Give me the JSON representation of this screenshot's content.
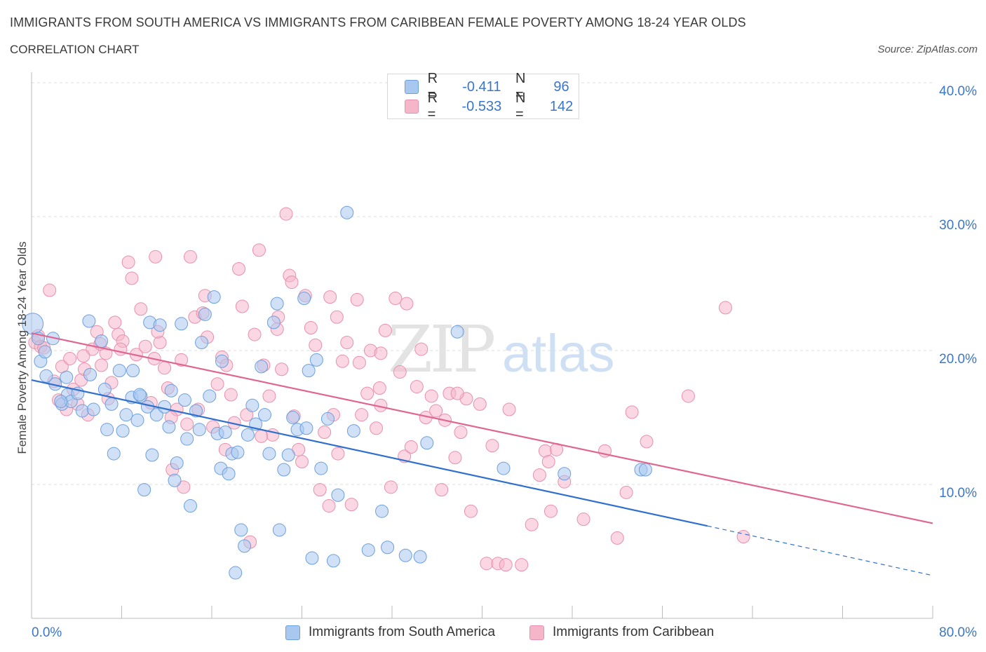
{
  "title": "IMMIGRANTS FROM SOUTH AMERICA VS IMMIGRANTS FROM CARIBBEAN FEMALE POVERTY AMONG 18-24 YEAR OLDS",
  "subtitle": "CORRELATION CHART",
  "source": "Source: ZipAtlas.com",
  "watermark": {
    "zip": "ZIP",
    "atlas": "atlas"
  },
  "colors": {
    "blue_fill": "#a9c8f0",
    "blue_stroke": "#6c9fdd",
    "blue_line": "#2f6fce",
    "pink_fill": "#f5b6ca",
    "pink_stroke": "#e890ad",
    "pink_line": "#e06690",
    "accent_text": "#3a76c9",
    "grid": "#dcdcdc"
  },
  "legend": {
    "rows": [
      {
        "series": "blue",
        "r_label": "R =",
        "r_value": "-0.411",
        "n_label": "N =",
        "n_value": "96"
      },
      {
        "series": "pink",
        "r_label": "R =",
        "r_value": "-0.533",
        "n_label": "N =",
        "n_value": "142"
      }
    ]
  },
  "bottom_legend": [
    {
      "series": "blue",
      "label": "Immigrants from South America"
    },
    {
      "series": "pink",
      "label": "Immigrants from Caribbean"
    }
  ],
  "chart_data": {
    "type": "scatter",
    "xlabel": "",
    "ylabel": "Female Poverty Among 18-24 Year Olds",
    "xlim": [
      0,
      80
    ],
    "ylim": [
      0,
      40
    ],
    "x_tick_labels": [
      {
        "value": 0,
        "label": "0.0%"
      },
      {
        "value": 80,
        "label": "80.0%"
      }
    ],
    "y_tick_labels": [
      {
        "value": 10,
        "label": "10.0%"
      },
      {
        "value": 20,
        "label": "20.0%"
      },
      {
        "value": 30,
        "label": "30.0%"
      },
      {
        "value": 40,
        "label": "40.0%"
      }
    ],
    "grid": true,
    "series": [
      {
        "name": "Immigrants from South America",
        "color": "blue",
        "trend": {
          "x0": 0,
          "y0": 17.8,
          "x1": 60,
          "y1": 6.9,
          "dashed_to_x": 80,
          "dashed_to_y": 3.2
        },
        "points": [
          [
            0.1,
            22.0
          ],
          [
            0.6,
            20.9
          ],
          [
            0.8,
            19.2
          ],
          [
            1.2,
            19.9
          ],
          [
            1.3,
            18.1
          ],
          [
            1.9,
            20.9
          ],
          [
            2.1,
            17.5
          ],
          [
            2.7,
            16.0
          ],
          [
            3.1,
            18.0
          ],
          [
            3.2,
            16.7
          ],
          [
            3.5,
            16.2
          ],
          [
            4.1,
            16.8
          ],
          [
            4.5,
            15.5
          ],
          [
            5.1,
            22.2
          ],
          [
            5.2,
            18.2
          ],
          [
            5.5,
            15.6
          ],
          [
            6.2,
            20.7
          ],
          [
            6.5,
            17.1
          ],
          [
            6.7,
            14.1
          ],
          [
            7.1,
            16.0
          ],
          [
            7.3,
            12.3
          ],
          [
            7.8,
            18.5
          ],
          [
            8.1,
            14.0
          ],
          [
            8.4,
            15.2
          ],
          [
            8.9,
            16.5
          ],
          [
            9.0,
            18.5
          ],
          [
            9.4,
            14.8
          ],
          [
            9.7,
            16.6
          ],
          [
            10.0,
            9.6
          ],
          [
            10.3,
            15.8
          ],
          [
            10.5,
            22.1
          ],
          [
            10.7,
            12.2
          ],
          [
            11.1,
            15.2
          ],
          [
            11.4,
            21.9
          ],
          [
            11.8,
            15.8
          ],
          [
            12.2,
            14.3
          ],
          [
            12.4,
            17.0
          ],
          [
            12.7,
            10.3
          ],
          [
            12.9,
            11.6
          ],
          [
            13.3,
            22.0
          ],
          [
            13.6,
            16.3
          ],
          [
            13.8,
            13.4
          ],
          [
            14.1,
            8.4
          ],
          [
            14.6,
            15.5
          ],
          [
            14.9,
            14.1
          ],
          [
            15.1,
            20.6
          ],
          [
            15.4,
            22.7
          ],
          [
            15.8,
            16.6
          ],
          [
            16.2,
            24.0
          ],
          [
            16.5,
            13.8
          ],
          [
            16.8,
            11.2
          ],
          [
            17.2,
            13.9
          ],
          [
            17.5,
            10.8
          ],
          [
            17.8,
            12.3
          ],
          [
            18.3,
            12.4
          ],
          [
            18.6,
            6.6
          ],
          [
            18.9,
            5.4
          ],
          [
            19.2,
            13.7
          ],
          [
            19.6,
            15.9
          ],
          [
            19.9,
            14.5
          ],
          [
            20.4,
            18.8
          ],
          [
            20.7,
            15.2
          ],
          [
            21.1,
            12.3
          ],
          [
            21.5,
            22.1
          ],
          [
            21.8,
            23.5
          ],
          [
            22.0,
            6.6
          ],
          [
            22.4,
            11.1
          ],
          [
            22.8,
            12.2
          ],
          [
            23.2,
            15.0
          ],
          [
            23.6,
            14.1
          ],
          [
            24.2,
            23.9
          ],
          [
            24.6,
            18.5
          ],
          [
            24.9,
            4.5
          ],
          [
            25.3,
            19.3
          ],
          [
            25.7,
            11.2
          ],
          [
            26.3,
            14.9
          ],
          [
            26.8,
            4.3
          ],
          [
            27.2,
            9.2
          ],
          [
            28.0,
            30.3
          ],
          [
            28.6,
            14.0
          ],
          [
            29.9,
            5.1
          ],
          [
            31.1,
            8.0
          ],
          [
            31.6,
            5.3
          ],
          [
            33.2,
            4.7
          ],
          [
            34.5,
            4.6
          ],
          [
            35.1,
            13.1
          ],
          [
            37.8,
            21.4
          ],
          [
            41.9,
            11.2
          ],
          [
            47.3,
            10.8
          ],
          [
            54.1,
            11.1
          ],
          [
            54.5,
            11.1
          ],
          [
            18.1,
            3.4
          ],
          [
            24.4,
            14.2
          ],
          [
            9.6,
            16.7
          ],
          [
            2.6,
            16.2
          ],
          [
            16.9,
            19.2
          ]
        ]
      },
      {
        "name": "Immigrants from Caribbean",
        "color": "pink",
        "trend": {
          "x0": 0,
          "y0": 21.3,
          "x1": 80,
          "y1": 7.1
        },
        "points": [
          [
            0.3,
            20.6
          ],
          [
            0.6,
            21.1
          ],
          [
            0.8,
            20.3
          ],
          [
            1.1,
            20.2
          ],
          [
            1.6,
            24.5
          ],
          [
            2.0,
            17.7
          ],
          [
            2.4,
            16.3
          ],
          [
            2.7,
            18.8
          ],
          [
            3.1,
            15.6
          ],
          [
            3.4,
            19.4
          ],
          [
            3.7,
            17.1
          ],
          [
            4.1,
            16.0
          ],
          [
            4.4,
            17.8
          ],
          [
            4.7,
            18.6
          ],
          [
            5.0,
            15.2
          ],
          [
            5.4,
            20.1
          ],
          [
            5.8,
            21.4
          ],
          [
            6.2,
            18.9
          ],
          [
            6.6,
            19.8
          ],
          [
            7.1,
            17.6
          ],
          [
            7.4,
            22.1
          ],
          [
            7.7,
            21.2
          ],
          [
            8.1,
            20.7
          ],
          [
            8.6,
            26.6
          ],
          [
            8.9,
            25.4
          ],
          [
            9.3,
            19.7
          ],
          [
            9.7,
            23.1
          ],
          [
            10.1,
            20.3
          ],
          [
            10.6,
            16.1
          ],
          [
            11.0,
            27.0
          ],
          [
            11.4,
            20.6
          ],
          [
            11.8,
            18.7
          ],
          [
            12.1,
            17.2
          ],
          [
            12.5,
            11.1
          ],
          [
            12.9,
            15.6
          ],
          [
            13.3,
            19.3
          ],
          [
            13.8,
            14.5
          ],
          [
            14.1,
            27.0
          ],
          [
            14.5,
            22.5
          ],
          [
            14.8,
            15.6
          ],
          [
            15.2,
            22.8
          ],
          [
            15.6,
            21.0
          ],
          [
            16.1,
            14.3
          ],
          [
            16.5,
            17.5
          ],
          [
            16.9,
            19.5
          ],
          [
            17.3,
            18.9
          ],
          [
            17.7,
            16.7
          ],
          [
            18.0,
            14.6
          ],
          [
            18.4,
            26.1
          ],
          [
            18.7,
            23.3
          ],
          [
            19.1,
            15.2
          ],
          [
            19.4,
            5.7
          ],
          [
            19.8,
            21.2
          ],
          [
            20.2,
            27.5
          ],
          [
            20.6,
            18.9
          ],
          [
            21.1,
            16.6
          ],
          [
            21.4,
            13.7
          ],
          [
            21.8,
            21.6
          ],
          [
            22.2,
            18.6
          ],
          [
            22.6,
            30.2
          ],
          [
            22.9,
            25.6
          ],
          [
            23.3,
            15.1
          ],
          [
            23.7,
            12.6
          ],
          [
            24.0,
            11.7
          ],
          [
            24.3,
            24.1
          ],
          [
            24.8,
            21.7
          ],
          [
            25.2,
            20.4
          ],
          [
            25.6,
            9.6
          ],
          [
            26.0,
            13.9
          ],
          [
            26.4,
            8.4
          ],
          [
            26.8,
            15.2
          ],
          [
            27.2,
            12.3
          ],
          [
            27.6,
            19.2
          ],
          [
            28.0,
            20.6
          ],
          [
            28.4,
            8.5
          ],
          [
            28.9,
            23.8
          ],
          [
            29.3,
            15.2
          ],
          [
            29.8,
            16.8
          ],
          [
            30.1,
            20.0
          ],
          [
            30.6,
            14.2
          ],
          [
            31.0,
            15.9
          ],
          [
            31.4,
            21.5
          ],
          [
            31.9,
            9.8
          ],
          [
            32.3,
            23.9
          ],
          [
            32.7,
            18.4
          ],
          [
            33.1,
            12.1
          ],
          [
            33.7,
            12.8
          ],
          [
            34.2,
            17.3
          ],
          [
            34.6,
            20.1
          ],
          [
            35.0,
            15.0
          ],
          [
            35.5,
            16.6
          ],
          [
            35.9,
            15.5
          ],
          [
            36.4,
            9.6
          ],
          [
            36.7,
            14.8
          ],
          [
            37.1,
            16.8
          ],
          [
            37.6,
            12.0
          ],
          [
            38.1,
            13.9
          ],
          [
            38.6,
            16.4
          ],
          [
            39.0,
            8.0
          ],
          [
            39.8,
            16.0
          ],
          [
            40.4,
            4.1
          ],
          [
            40.9,
            12.9
          ],
          [
            41.4,
            4.1
          ],
          [
            42.1,
            4.0
          ],
          [
            42.4,
            15.6
          ],
          [
            43.5,
            4.0
          ],
          [
            44.4,
            7.0
          ],
          [
            45.1,
            10.7
          ],
          [
            45.6,
            12.5
          ],
          [
            46.1,
            8.0
          ],
          [
            46.6,
            12.6
          ],
          [
            47.3,
            10.2
          ],
          [
            49.0,
            7.4
          ],
          [
            50.9,
            12.5
          ],
          [
            52.8,
            9.4
          ],
          [
            52.0,
            6.0
          ],
          [
            53.3,
            15.4
          ],
          [
            54.6,
            13.2
          ],
          [
            58.3,
            16.6
          ],
          [
            61.6,
            23.2
          ],
          [
            63.2,
            6.1
          ],
          [
            11.2,
            21.4
          ],
          [
            23.1,
            25.1
          ],
          [
            26.5,
            24.0
          ],
          [
            17.2,
            12.6
          ],
          [
            15.4,
            24.1
          ],
          [
            13.5,
            9.8
          ],
          [
            30.9,
            17.2
          ],
          [
            33.3,
            23.5
          ],
          [
            31.0,
            19.8
          ],
          [
            4.6,
            19.6
          ],
          [
            7.9,
            20.1
          ],
          [
            6.8,
            16.4
          ],
          [
            10.9,
            19.4
          ],
          [
            12.4,
            15.0
          ],
          [
            29.1,
            19.1
          ],
          [
            37.8,
            16.8
          ],
          [
            45.9,
            11.7
          ],
          [
            20.4,
            13.6
          ],
          [
            6.1,
            20.5
          ],
          [
            21.9,
            22.5
          ],
          [
            27.1,
            22.5
          ]
        ]
      }
    ]
  }
}
